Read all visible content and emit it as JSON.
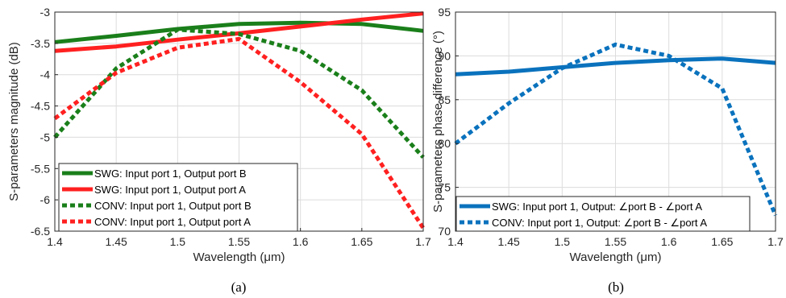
{
  "chart_data": [
    {
      "type": "line",
      "caption": "(a)",
      "xlabel": "Wavelength (μm)",
      "ylabel": "S-parameters magnitude (dB)",
      "xlim": [
        1.4,
        1.7
      ],
      "ylim": [
        -6.5,
        -3
      ],
      "grid": true,
      "legend_position": "bottom-left",
      "x_ticks": [
        "1.4",
        "1.45",
        "1.5",
        "1.55",
        "1.6",
        "1.65",
        "1.7"
      ],
      "y_ticks": [
        "-6.5",
        "-6",
        "-5.5",
        "-5",
        "-4.5",
        "-4",
        "-3.5",
        "-3"
      ],
      "x": [
        1.4,
        1.45,
        1.5,
        1.55,
        1.6,
        1.65,
        1.7
      ],
      "series": [
        {
          "name": "SWG: Input port 1, Output port B",
          "color": "#1a7f1a",
          "style": "solid",
          "values": [
            -3.48,
            -3.38,
            -3.27,
            -3.19,
            -3.17,
            -3.19,
            -3.3
          ]
        },
        {
          "name": "SWG: Input port 1, Output port A",
          "color": "#ff2020",
          "style": "solid",
          "values": [
            -3.62,
            -3.55,
            -3.44,
            -3.34,
            -3.23,
            -3.12,
            -3.02
          ]
        },
        {
          "name": "CONV: Input port 1, Output port B",
          "color": "#1a7f1a",
          "style": "dotted",
          "values": [
            -5.0,
            -3.9,
            -3.28,
            -3.35,
            -3.62,
            -4.25,
            -5.32
          ]
        },
        {
          "name": "CONV: Input port 1, Output port A",
          "color": "#ff2020",
          "style": "dotted",
          "values": [
            -4.7,
            -3.97,
            -3.57,
            -3.43,
            -4.12,
            -4.95,
            -6.45
          ]
        }
      ]
    },
    {
      "type": "line",
      "caption": "(b)",
      "xlabel": "Wavelength (μm)",
      "ylabel": "S-parameters phase difference (°)",
      "xlim": [
        1.4,
        1.7
      ],
      "ylim": [
        70,
        95
      ],
      "grid": true,
      "legend_position": "bottom",
      "x_ticks": [
        "1.4",
        "1.45",
        "1.5",
        "1.55",
        "1.6",
        "1.65",
        "1.7"
      ],
      "y_ticks": [
        "70",
        "75",
        "80",
        "85",
        "90",
        "95"
      ],
      "x": [
        1.4,
        1.45,
        1.5,
        1.55,
        1.6,
        1.65,
        1.7
      ],
      "series": [
        {
          "name": "SWG: Input port 1, Output: ∠port B - ∠port A",
          "color": "#0a72bd",
          "style": "solid",
          "values": [
            87.9,
            88.2,
            88.7,
            89.2,
            89.5,
            89.7,
            89.2
          ]
        },
        {
          "name": "CONV: Input port 1, Output: ∠port B - ∠port A",
          "color": "#0a72bd",
          "style": "dotted",
          "values": [
            80.0,
            84.6,
            88.6,
            91.3,
            90.0,
            86.3,
            71.8
          ]
        }
      ]
    }
  ]
}
